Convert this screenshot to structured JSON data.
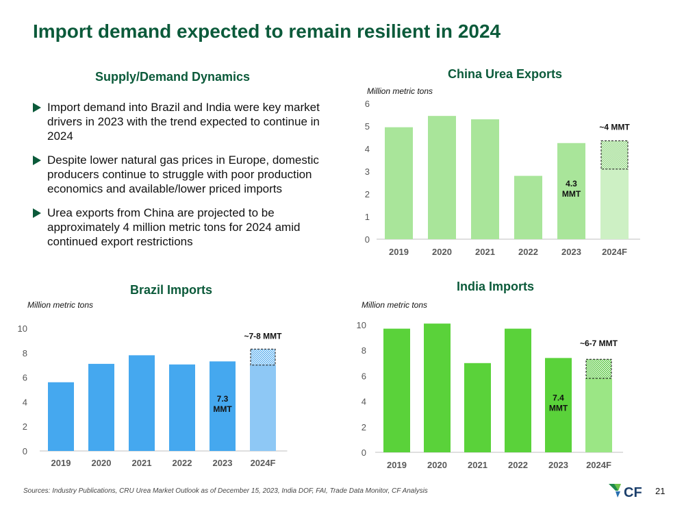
{
  "title": "Import demand expected to remain resilient in 2024",
  "supply_demand": {
    "heading": "Supply/Demand Dynamics",
    "bullets": [
      "Import demand into Brazil and India were key market drivers in 2023 with the trend expected to continue in 2024",
      "Despite lower natural gas prices in Europe, domestic producers continue to struggle with poor production economics and available/lower priced imports",
      "Urea exports from China are projected to be approximately 4 million metric tons for 2024 amid continued export restrictions"
    ]
  },
  "colors": {
    "title_green": "#0b5a3a",
    "china_bar": "#a9e59a",
    "china_forecast": "#cdf0c4",
    "brazil_bar": "#45a8ef",
    "brazil_forecast": "#8ec8f5",
    "india_bar": "#5ad23a",
    "india_forecast": "#9be685"
  },
  "chart_data": [
    {
      "id": "china",
      "type": "bar",
      "title": "China Urea Exports",
      "ylabel": "Million metric tons",
      "categories": [
        "2019",
        "2020",
        "2021",
        "2022",
        "2023",
        "2024F"
      ],
      "values": [
        4.95,
        5.45,
        5.3,
        2.8,
        4.25,
        3.1
      ],
      "forecast_range": [
        3.1,
        4.35
      ],
      "ylim": [
        0,
        6
      ],
      "yticks": [
        0,
        1,
        2,
        3,
        4,
        5,
        6
      ],
      "bar_label": "4.3\nMMT",
      "forecast_label": "~4 MMT"
    },
    {
      "id": "brazil",
      "type": "bar",
      "title": "Brazil Imports",
      "ylabel": "Million metric tons",
      "categories": [
        "2019",
        "2020",
        "2021",
        "2022",
        "2023",
        "2024F"
      ],
      "values": [
        5.6,
        7.1,
        7.8,
        7.05,
        7.3,
        7.0
      ],
      "forecast_range": [
        7.0,
        8.3
      ],
      "ylim": [
        0,
        10
      ],
      "yticks": [
        0,
        2,
        4,
        6,
        8,
        10
      ],
      "bar_label": "7.3\nMMT",
      "forecast_label": "~7-8 MMT"
    },
    {
      "id": "india",
      "type": "bar",
      "title": "India Imports",
      "ylabel": "Million metric tons",
      "categories": [
        "2019",
        "2020",
        "2021",
        "2022",
        "2023",
        "2024F"
      ],
      "values": [
        9.7,
        10.1,
        7.0,
        9.7,
        7.4,
        5.8
      ],
      "forecast_range": [
        5.8,
        7.3
      ],
      "ylim": [
        0,
        10
      ],
      "yticks": [
        0,
        2,
        4,
        6,
        8,
        10
      ],
      "bar_label": "7.4\nMMT",
      "forecast_label": "~6-7 MMT"
    }
  ],
  "footer": {
    "sources": "Sources: Industry Publications, CRU Urea Market Outlook as of December 15, 2023, India DOF, FAI, Trade Data Monitor, CF Analysis",
    "page_number": "21",
    "logo_text": "CF"
  }
}
